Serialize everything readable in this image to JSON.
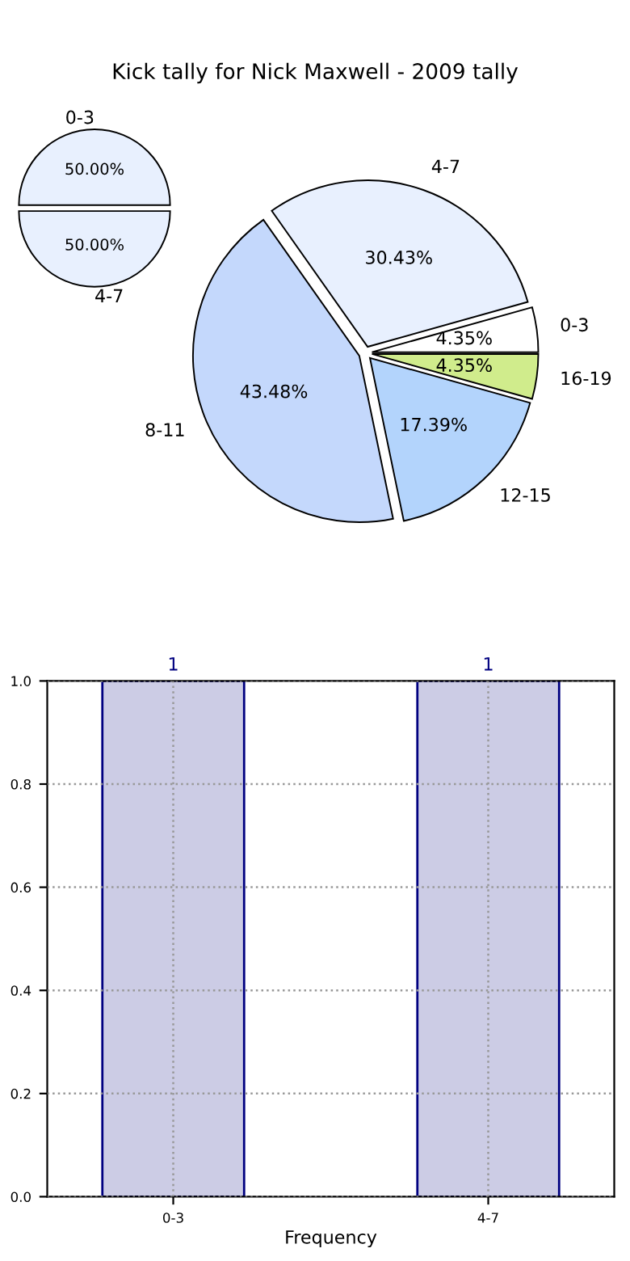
{
  "chart_data": [
    {
      "type": "pie",
      "categories": [
        "0-3",
        "4-7"
      ],
      "values": [
        50,
        50
      ],
      "colors": [
        "#e8f0fe",
        "#e8f0fe"
      ],
      "value_labels": [
        "50.00%",
        "50.00%"
      ]
    },
    {
      "type": "pie",
      "title": "Kick tally for Nick Maxwell - 2009 tally",
      "categories": [
        "0-3",
        "4-7",
        "8-11",
        "12-15",
        "16-19"
      ],
      "values": [
        4.35,
        30.43,
        43.48,
        17.39,
        4.35
      ],
      "colors": [
        "#ffffff",
        "#e8f0fe",
        "#c4d8fc",
        "#b3d4fc",
        "#d0ec8c"
      ],
      "value_labels": [
        "4.35%",
        "30.43%",
        "43.48%",
        "17.39%",
        "4.35%"
      ]
    },
    {
      "type": "bar",
      "categories": [
        "0-3",
        "4-7"
      ],
      "values": [
        1,
        1
      ],
      "color": "#ccccE5",
      "xlabel": "Frequency",
      "ylim": [
        0,
        1
      ],
      "yticks": [
        {
          "value": 0,
          "label": "0.0"
        },
        {
          "value": 0.2,
          "label": "0.2"
        },
        {
          "value": 0.4,
          "label": "0.4"
        },
        {
          "value": 0.6,
          "label": "0.6"
        },
        {
          "value": 0.8,
          "label": "0.8"
        },
        {
          "value": 1,
          "label": "1.0"
        }
      ],
      "grid": true,
      "data_labels": true
    }
  ]
}
